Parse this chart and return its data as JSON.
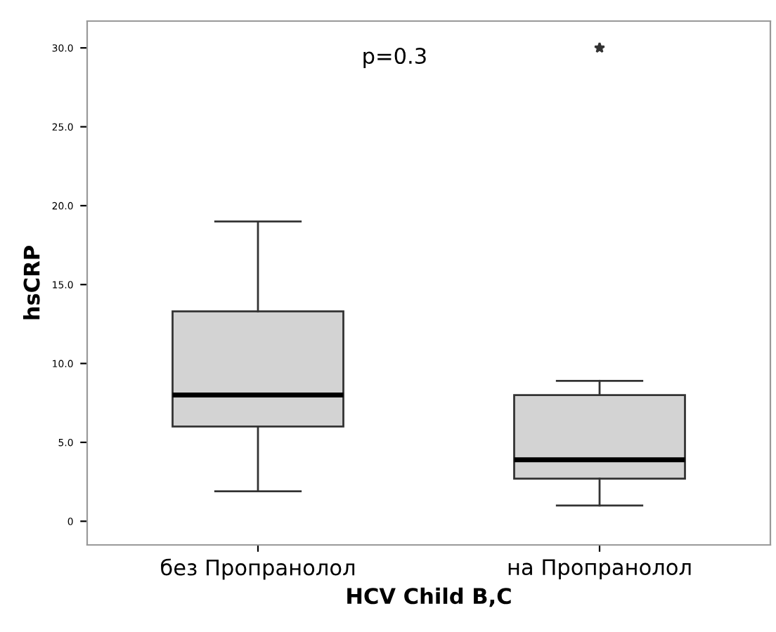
{
  "chart_data": {
    "type": "box",
    "xlabel": "HCV Child B,C",
    "ylabel": "hsCRP",
    "categories": [
      "без Пропранолол",
      "на Пропранолол"
    ],
    "boxes": [
      {
        "low": 1.9,
        "q1": 6.0,
        "median": 8.0,
        "q3": 13.3,
        "high": 19.0
      },
      {
        "low": 1.0,
        "q1": 2.7,
        "median": 3.9,
        "q3": 8.0,
        "high": 8.9,
        "outliers": [
          30.0
        ]
      }
    ],
    "color": "#d3d3d3",
    "ylim": [
      -1.5,
      31.7
    ],
    "yticks": [
      {
        "value": 0,
        "label": "0"
      },
      {
        "value": 5,
        "label": "5.0"
      },
      {
        "value": 10,
        "label": "10.0"
      },
      {
        "value": 15,
        "label": "15.0"
      },
      {
        "value": 20,
        "label": "20.0"
      },
      {
        "value": 25,
        "label": "25.0"
      },
      {
        "value": 30,
        "label": "30.0"
      }
    ],
    "annotations": [
      "p=0.3"
    ],
    "grid": false
  }
}
